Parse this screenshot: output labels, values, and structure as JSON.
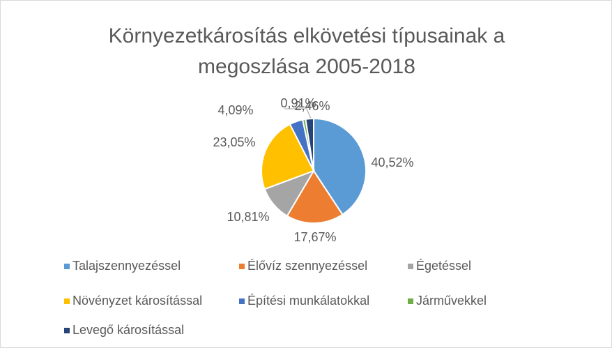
{
  "chart_data": {
    "type": "pie",
    "title": "Környezetkárosítás elkövetési típusainak a megoszlása 2005-2018",
    "categories": [
      "Talajszennyezéssel",
      "Élővíz szennyezéssel",
      "Égetéssel",
      "Növényzet károsítással",
      "Építési munkálatokkal",
      "Járművekkel",
      "Levegő károsítással"
    ],
    "values": [
      40.52,
      17.67,
      10.81,
      23.05,
      4.09,
      0.91,
      2.46
    ],
    "value_labels": [
      "40,52%",
      "17,67%",
      "10,81%",
      "23,05%",
      "4,09%",
      "0,91%",
      "2,46%"
    ],
    "colors": [
      "#5b9bd5",
      "#ed7d31",
      "#a5a5a5",
      "#ffc000",
      "#4472c4",
      "#70ad47",
      "#264478"
    ],
    "legend": "bottom"
  }
}
